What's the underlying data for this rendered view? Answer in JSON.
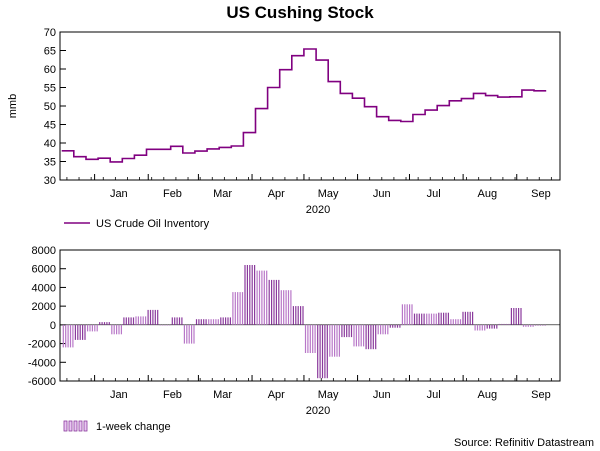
{
  "title": "US Cushing Stock",
  "source": "Source: Refinitiv Datastream",
  "colors": {
    "line": "#800080",
    "bar_stroke": "#8a3a9c",
    "bar_fill": "#e9c6f2",
    "axis": "#000000"
  },
  "chart_data": [
    {
      "type": "line",
      "title": "US Cushing Stock",
      "ylabel": "mmb",
      "xlabel": "2020",
      "ylim": [
        30,
        70
      ],
      "yticks": [
        30,
        35,
        40,
        45,
        50,
        55,
        60,
        65,
        70
      ],
      "months": [
        "Jan",
        "Feb",
        "Mar",
        "Apr",
        "May",
        "Jun",
        "Jul",
        "Aug",
        "Sep"
      ],
      "x_year": "2020",
      "series": [
        {
          "name": "US Crude Oil Inventory",
          "color": "#800080",
          "dates": [
            "2019-12-13",
            "2019-12-20",
            "2019-12-27",
            "2020-01-03",
            "2020-01-10",
            "2020-01-17",
            "2020-01-24",
            "2020-01-31",
            "2020-02-07",
            "2020-02-14",
            "2020-02-21",
            "2020-02-28",
            "2020-03-06",
            "2020-03-13",
            "2020-03-20",
            "2020-03-27",
            "2020-04-03",
            "2020-04-10",
            "2020-04-17",
            "2020-04-24",
            "2020-05-01",
            "2020-05-08",
            "2020-05-15",
            "2020-05-22",
            "2020-05-29",
            "2020-06-05",
            "2020-06-12",
            "2020-06-19",
            "2020-06-26",
            "2020-07-03",
            "2020-07-10",
            "2020-07-17",
            "2020-07-24",
            "2020-07-31",
            "2020-08-07",
            "2020-08-14",
            "2020-08-21",
            "2020-08-28",
            "2020-09-04",
            "2020-09-11"
          ],
          "values": [
            37.9,
            36.3,
            35.6,
            35.9,
            34.9,
            35.8,
            36.7,
            38.3,
            38.3,
            39.1,
            37.3,
            37.8,
            38.4,
            38.8,
            39.2,
            42.8,
            49.3,
            55.0,
            59.8,
            63.6,
            65.4,
            62.4,
            56.6,
            53.4,
            52.1,
            49.8,
            47.1,
            46.1,
            45.8,
            47.7,
            48.9,
            50.1,
            51.4,
            52.0,
            53.4,
            52.8,
            52.4,
            52.5,
            54.3,
            54.1
          ]
        }
      ]
    },
    {
      "type": "bar",
      "ylim": [
        -6000,
        8000
      ],
      "yticks": [
        -6000,
        -4000,
        -2000,
        0,
        2000,
        4000,
        6000,
        8000
      ],
      "months": [
        "Jan",
        "Feb",
        "Mar",
        "Apr",
        "May",
        "Jun",
        "Jul",
        "Aug",
        "Sep"
      ],
      "xlabel": "2020",
      "x_year": "2020",
      "series": [
        {
          "name": "1-week change",
          "dates": [
            "2019-12-13",
            "2019-12-20",
            "2019-12-27",
            "2020-01-03",
            "2020-01-10",
            "2020-01-17",
            "2020-01-24",
            "2020-01-31",
            "2020-02-07",
            "2020-02-14",
            "2020-02-21",
            "2020-02-28",
            "2020-03-06",
            "2020-03-13",
            "2020-03-20",
            "2020-03-27",
            "2020-04-03",
            "2020-04-10",
            "2020-04-17",
            "2020-04-24",
            "2020-05-01",
            "2020-05-08",
            "2020-05-15",
            "2020-05-22",
            "2020-05-29",
            "2020-06-05",
            "2020-06-12",
            "2020-06-19",
            "2020-06-26",
            "2020-07-03",
            "2020-07-10",
            "2020-07-17",
            "2020-07-24",
            "2020-07-31",
            "2020-08-07",
            "2020-08-14",
            "2020-08-21",
            "2020-08-28",
            "2020-09-04",
            "2020-09-11"
          ],
          "values": [
            -2400,
            -1600,
            -700,
            300,
            -1000,
            800,
            900,
            1600,
            0,
            800,
            -2000,
            600,
            600,
            800,
            3500,
            6400,
            5800,
            4800,
            3700,
            2000,
            -3000,
            -5700,
            -3400,
            -1300,
            -2300,
            -2600,
            -1000,
            -300,
            2200,
            1200,
            1200,
            1300,
            600,
            1400,
            -600,
            -400,
            100,
            1800,
            -200,
            0
          ]
        }
      ]
    }
  ]
}
